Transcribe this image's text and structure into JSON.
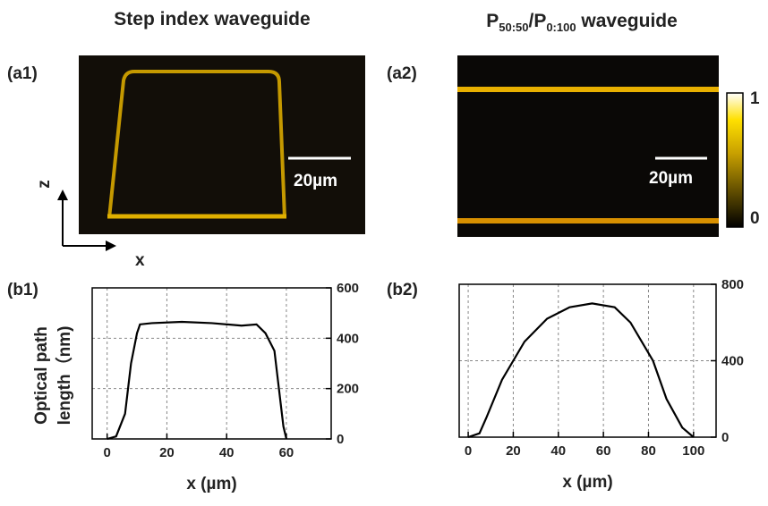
{
  "titles": {
    "left": "Step index waveguide",
    "right_parts": [
      "P",
      "50:50",
      "/P",
      "0:100",
      " waveguide"
    ]
  },
  "panels": [
    {
      "label": "(a1)",
      "scale_bar": "20µm"
    },
    {
      "label": "(a2)",
      "scale_bar": "20µm"
    }
  ],
  "axis_labels": {
    "z": "z",
    "x": "x"
  },
  "colorbar": {
    "max": 1,
    "min": 0
  },
  "chart_data": [
    {
      "type": "line",
      "label": "(b1)",
      "x_label": "x (µm)",
      "y_label": [
        "Optical path",
        "length（nm)"
      ],
      "x": [
        0,
        3,
        6,
        8,
        10,
        11,
        15,
        25,
        35,
        45,
        50,
        53,
        56,
        57,
        59,
        60
      ],
      "series": [
        {
          "color": "#000000",
          "values": [
            0,
            10,
            100,
            300,
            420,
            455,
            460,
            465,
            460,
            450,
            455,
            420,
            350,
            250,
            50,
            0
          ]
        }
      ],
      "xlim": [
        -5,
        75
      ],
      "ylim": [
        0,
        600
      ],
      "xticks": [
        0,
        20,
        40,
        60
      ],
      "yticks": [
        0,
        200,
        400,
        600
      ],
      "grid": true
    },
    {
      "type": "line",
      "label": "(b2)",
      "x_label": "x (µm)",
      "x": [
        0,
        5,
        8,
        15,
        25,
        35,
        45,
        55,
        65,
        72,
        82,
        88,
        95,
        100
      ],
      "series": [
        {
          "color": "#000000",
          "values": [
            0,
            20,
            100,
            300,
            500,
            620,
            680,
            700,
            680,
            600,
            400,
            200,
            50,
            0
          ]
        }
      ],
      "xlim": [
        -4,
        110
      ],
      "ylim": [
        0,
        800
      ],
      "xticks": [
        0,
        20,
        40,
        60,
        80,
        100
      ],
      "yticks": [
        0,
        400,
        800
      ],
      "grid": true
    }
  ]
}
